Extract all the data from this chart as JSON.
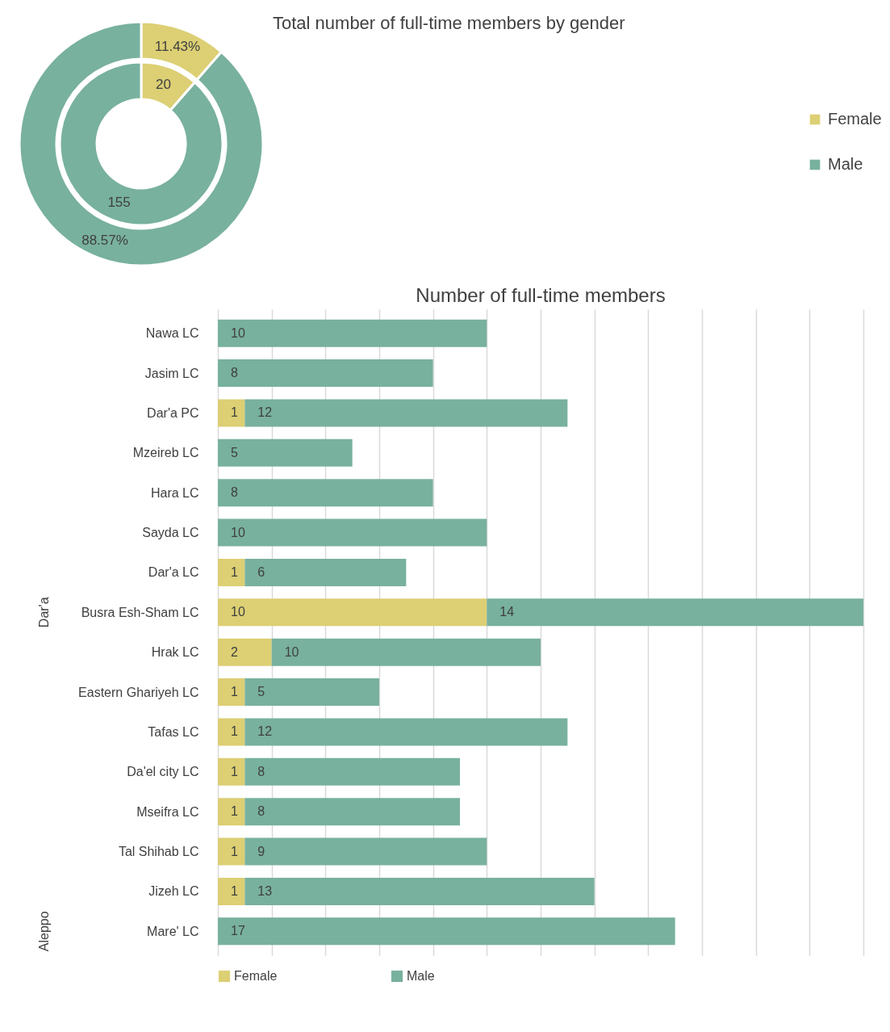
{
  "chart_data": [
    {
      "type": "donut",
      "title": "Total number of full-time members by gender",
      "categories": [
        "Female",
        "Male"
      ],
      "colors": [
        "#dccf74",
        "#78b19e"
      ],
      "legend": "right",
      "series": [
        {
          "values": [
            20,
            155
          ],
          "value_labels": [
            "20",
            "155"
          ]
        },
        {
          "values": [
            11.43,
            88.57
          ],
          "value_labels": [
            "11.43%",
            "88.57%"
          ]
        }
      ]
    },
    {
      "type": "bar",
      "orientation": "horizontal",
      "stacked": true,
      "title": "Number of full-time members",
      "categories": [
        "Nawa LC",
        "Jasim LC",
        "Dar'a PC",
        "Mzeireb LC",
        "Hara LC",
        "Sayda LC",
        "Dar'a LC",
        "Busra Esh-Sham LC",
        "Hrak LC",
        "Eastern Ghariyeh LC",
        "Tafas LC",
        "Da'el city LC",
        "Mseifra LC",
        "Tal Shihab LC",
        "Jizeh LC",
        "Mare' LC"
      ],
      "series": [
        {
          "name": "Female",
          "color": "#dccf74",
          "values": [
            null,
            null,
            1,
            null,
            null,
            null,
            1,
            10,
            2,
            1,
            1,
            1,
            1,
            1,
            1,
            null
          ]
        },
        {
          "name": "Male",
          "color": "#78b19e",
          "values": [
            10,
            8,
            12,
            5,
            8,
            10,
            6,
            14,
            10,
            5,
            12,
            8,
            8,
            9,
            13,
            17
          ]
        }
      ],
      "xlim": [
        0,
        24
      ],
      "xticks": [
        {
          "value": 0,
          "label": null
        },
        {
          "value": 2,
          "label": null
        },
        {
          "value": 4,
          "label": null
        },
        {
          "value": 6,
          "label": null
        },
        {
          "value": 8,
          "label": null
        },
        {
          "value": 10,
          "label": null
        },
        {
          "value": 12,
          "label": null
        },
        {
          "value": 14,
          "label": null
        },
        {
          "value": 16,
          "label": null
        },
        {
          "value": 18,
          "label": null
        },
        {
          "value": 20,
          "label": null
        },
        {
          "value": 22,
          "label": null
        },
        {
          "value": 24,
          "label": null
        }
      ],
      "tick_labels": "y",
      "grid": "x",
      "data_labels": true,
      "legend": "bottom",
      "annotations": [
        "Dar'a",
        "Aleppo"
      ]
    }
  ]
}
